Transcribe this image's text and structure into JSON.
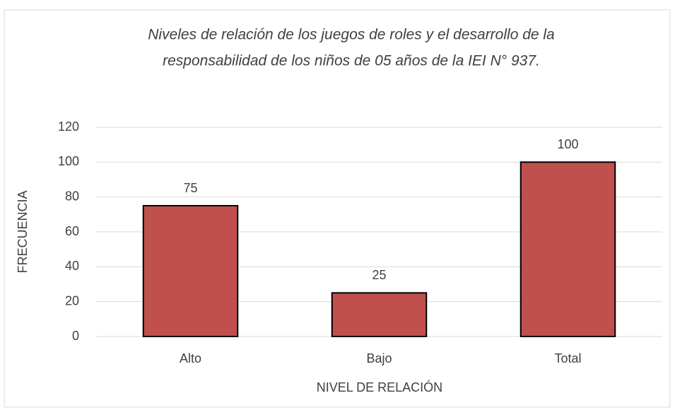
{
  "chart_data": {
    "type": "bar",
    "title": [
      "Niveles  de relación  de los  juegos de roles y el desarrollo  de la",
      "responsabilidad  de los niños de 05 años de la IEI  N° 937."
    ],
    "categories": [
      "Alto",
      "Bajo",
      "Total"
    ],
    "values": [
      75,
      25,
      100
    ],
    "color": "#c0504d",
    "xlabel": "NIVEL DE RELACIÓN",
    "ylabel": "FRECUENCIA",
    "ylim": [
      0,
      120
    ],
    "yticks": [
      0,
      20,
      40,
      60,
      80,
      100,
      120
    ],
    "grid": true
  }
}
